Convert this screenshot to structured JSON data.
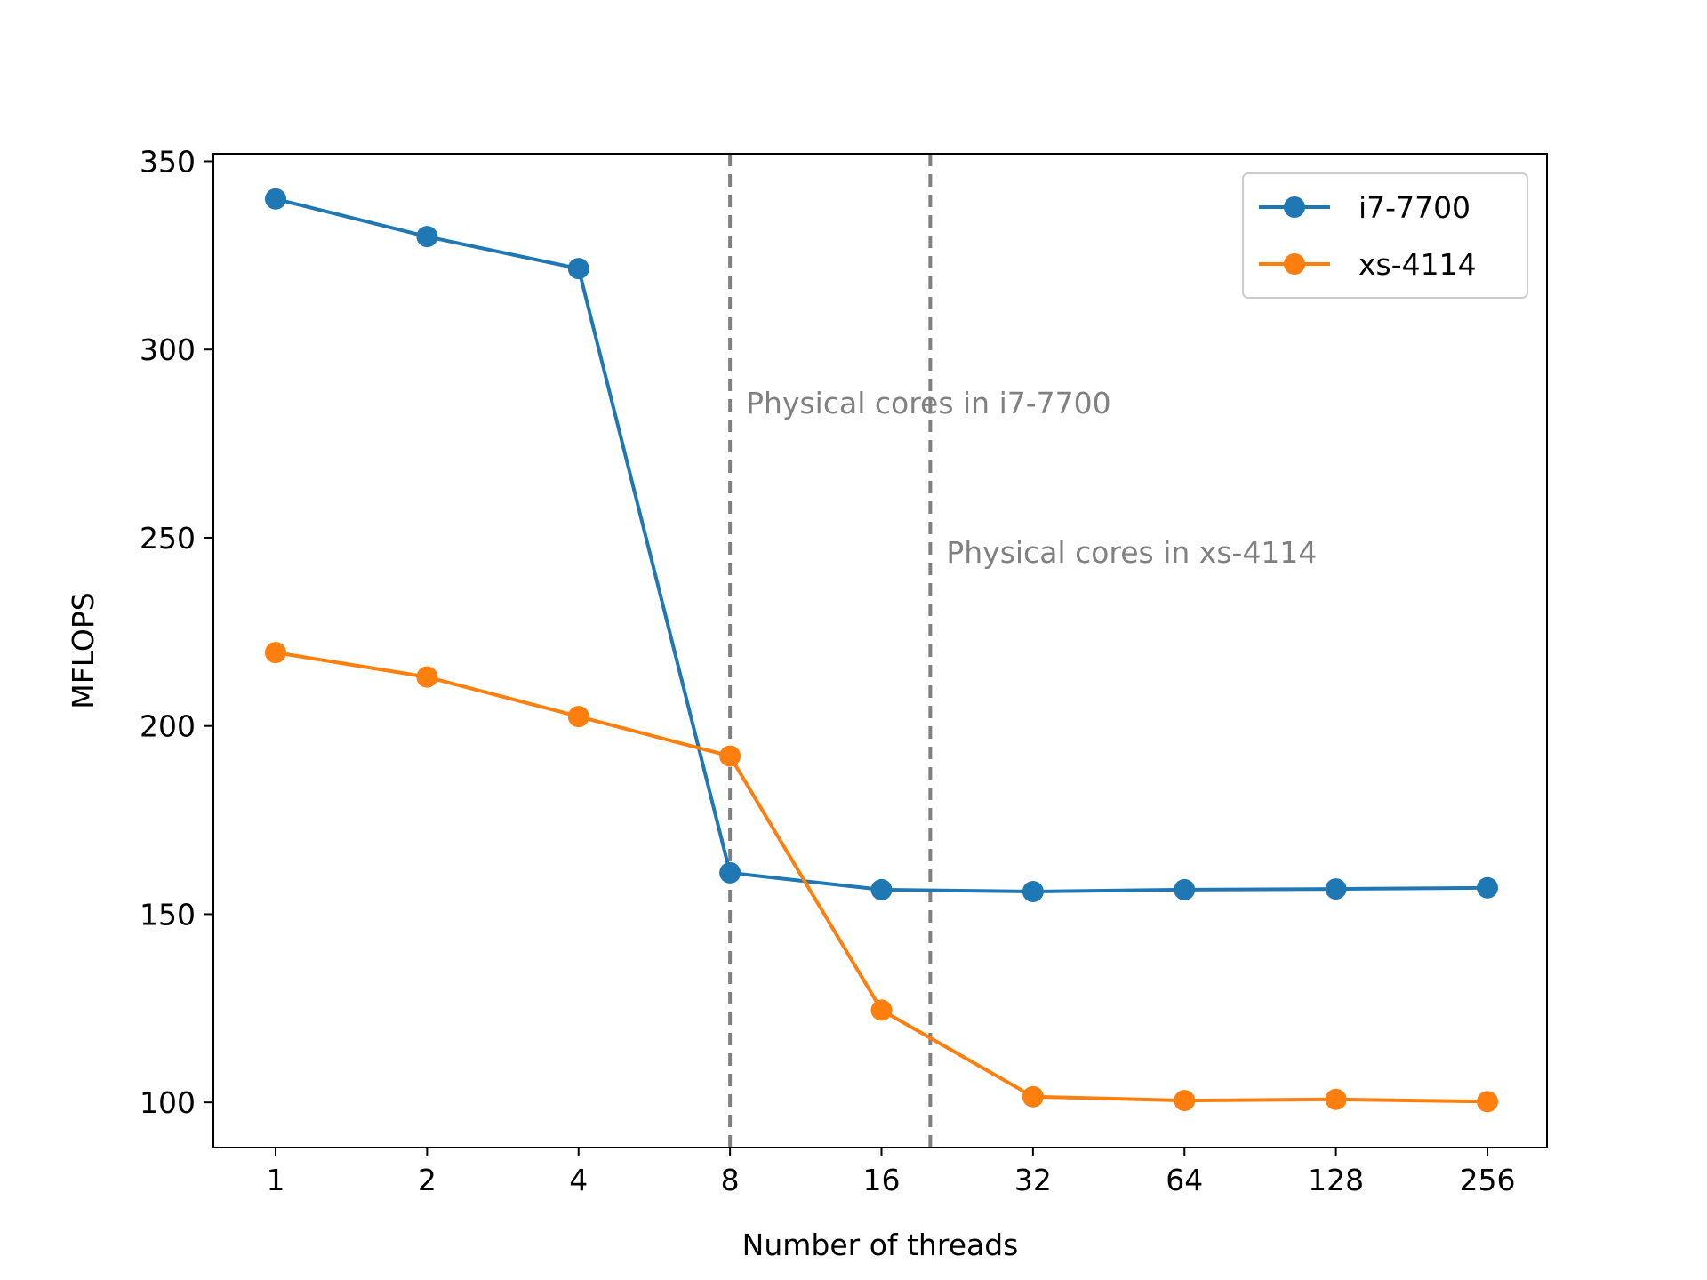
{
  "chart_data": {
    "type": "line",
    "title": "",
    "xlabel": "Number of threads",
    "ylabel": "MFLOPS",
    "x_scale": "log2",
    "categories": [
      "1",
      "2",
      "4",
      "8",
      "16",
      "32",
      "64",
      "128",
      "256"
    ],
    "x": [
      1,
      2,
      4,
      8,
      16,
      32,
      64,
      128,
      256
    ],
    "ylim": [
      88,
      352
    ],
    "yticks": [
      "100",
      "150",
      "200",
      "250",
      "300",
      "350"
    ],
    "grid": false,
    "legend_position": "top-right",
    "series": [
      {
        "name": "i7-7700",
        "color": "#1f77b4",
        "marker": "circle",
        "values": [
          340,
          330,
          321.5,
          161,
          156.5,
          156,
          156.5,
          156.7,
          157
        ]
      },
      {
        "name": "xs-4114",
        "color": "#ff7f0e",
        "marker": "circle",
        "values": [
          219.5,
          213,
          202.5,
          192,
          124.5,
          101.5,
          100.5,
          100.8,
          100.2
        ]
      }
    ],
    "reference_lines": [
      {
        "x": 8,
        "style": "dashed",
        "color": "#808080",
        "label": "Physical cores in i7-7700"
      },
      {
        "x": 20,
        "style": "dashed",
        "color": "#808080",
        "label": "Physical cores in xs-4114"
      }
    ]
  }
}
